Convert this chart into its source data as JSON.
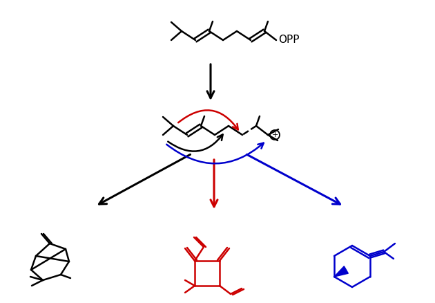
{
  "bg_color": "#ffffff",
  "black": "#000000",
  "red": "#cc0000",
  "blue": "#0000cc",
  "lw": 1.8
}
